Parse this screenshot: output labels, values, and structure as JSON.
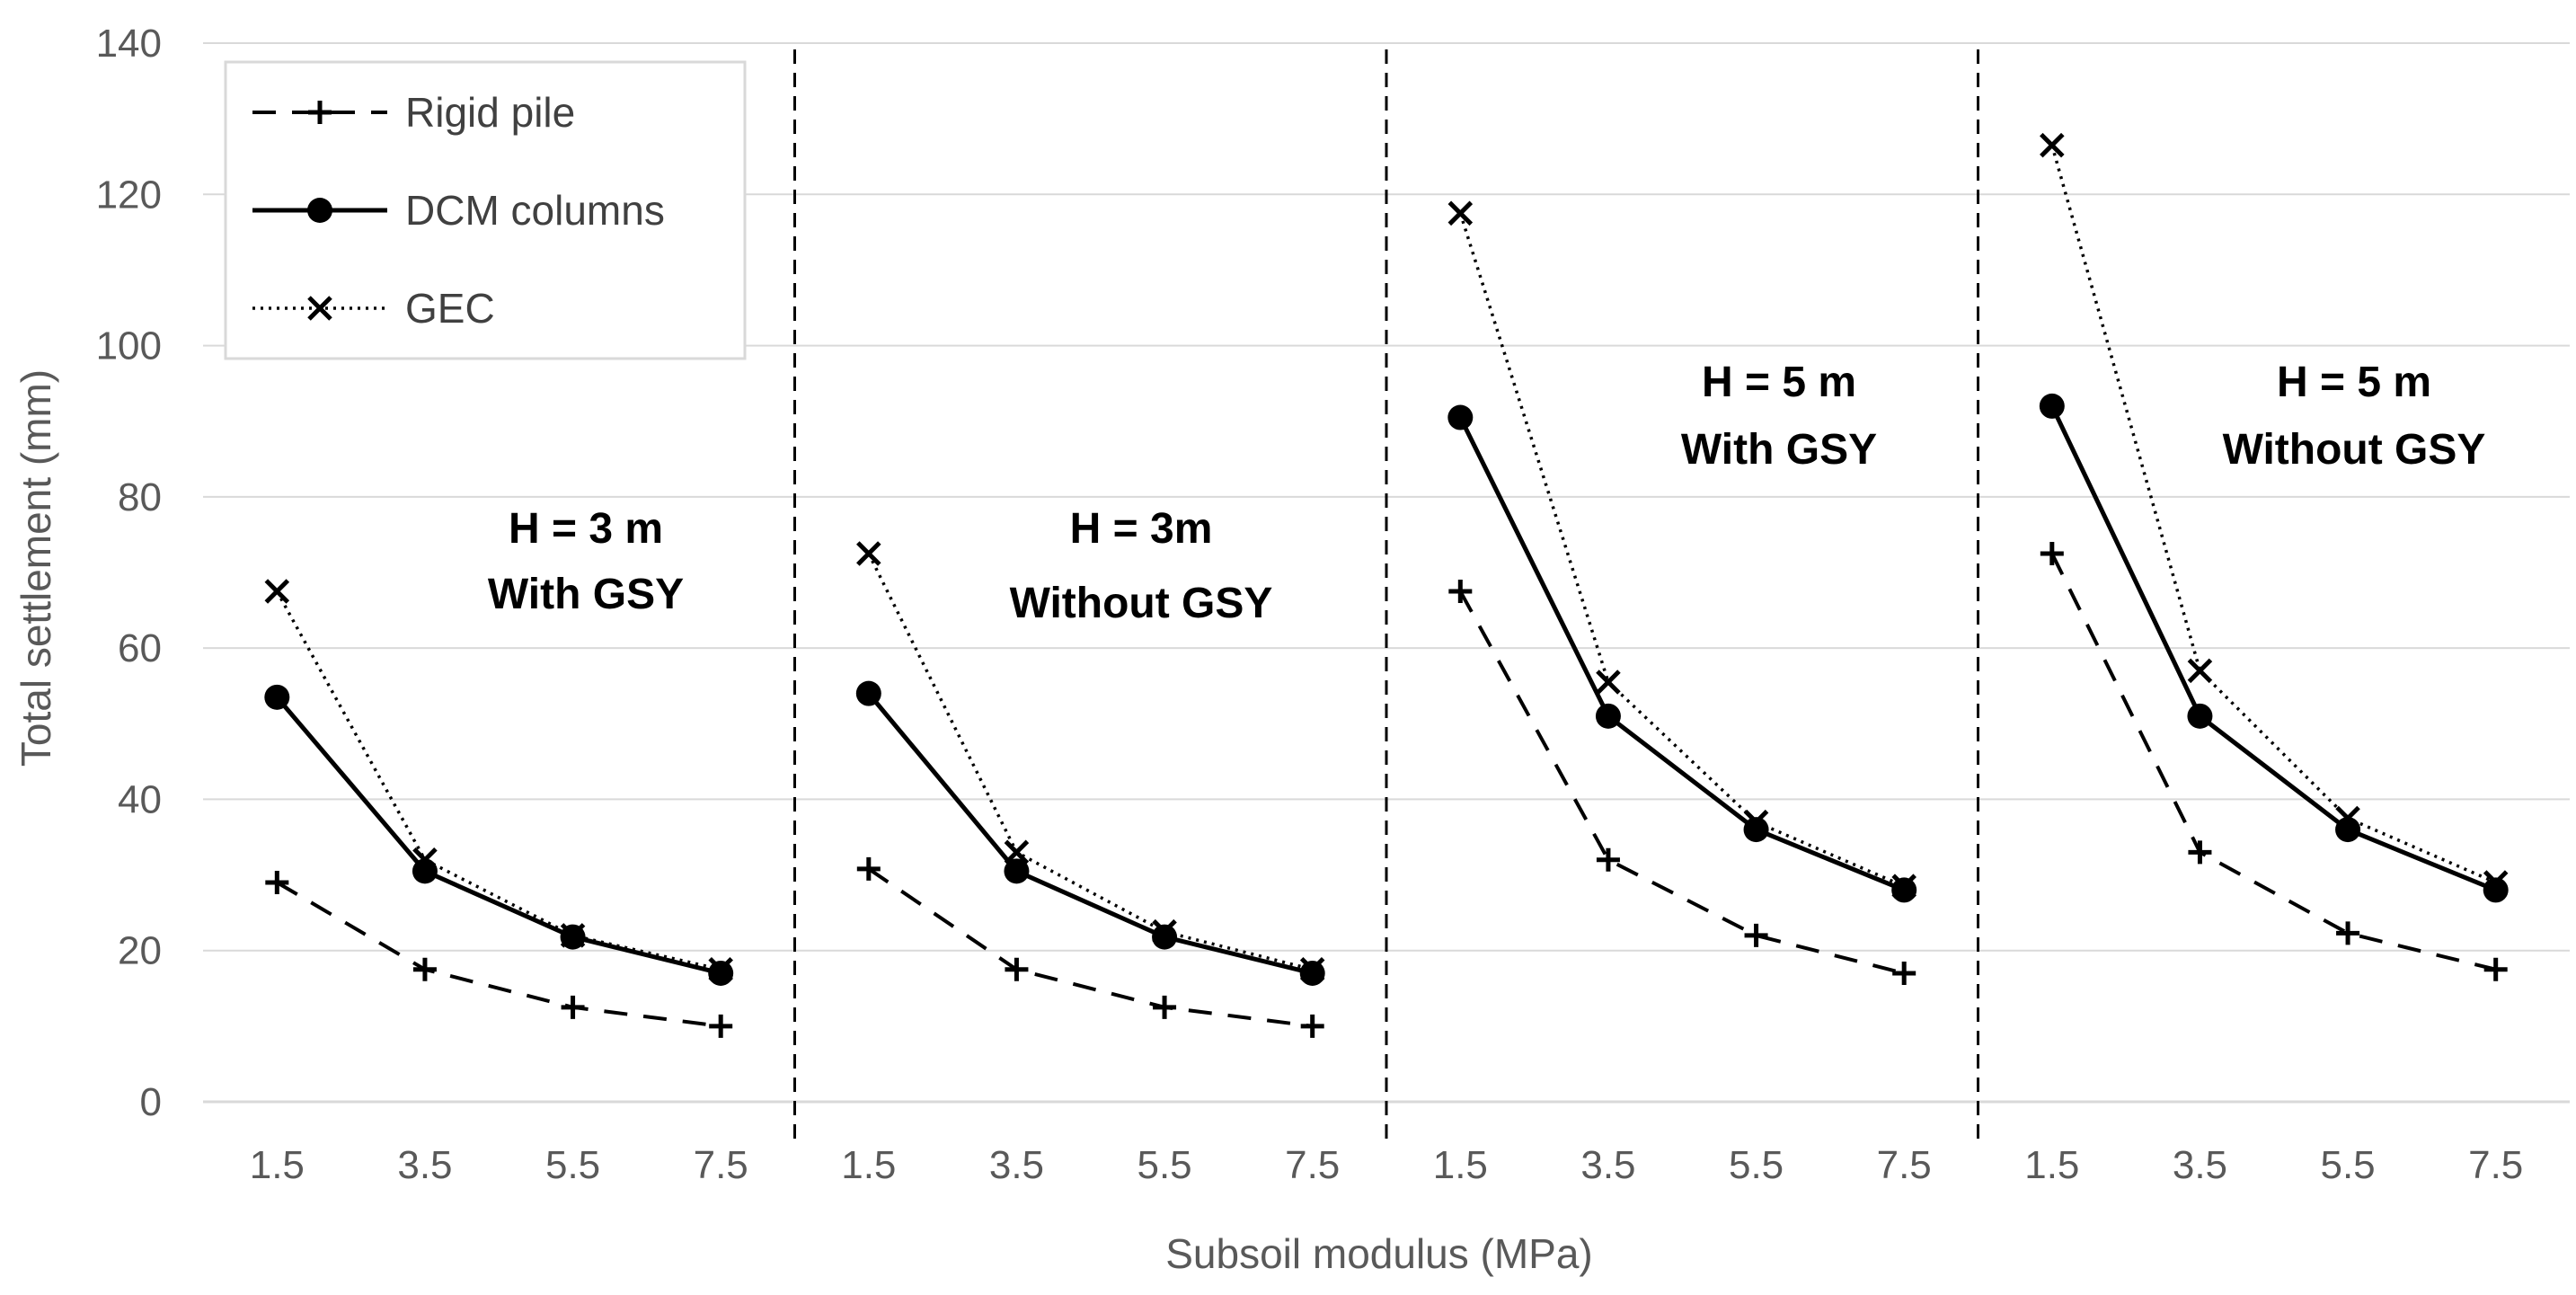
{
  "chart_data": {
    "type": "line",
    "title": "",
    "xlabel": "Subsoil modulus (MPa)",
    "ylabel": "Total settlement (mm)",
    "ylim": [
      0,
      140
    ],
    "yticks": [
      "0",
      "20",
      "40",
      "60",
      "80",
      "100",
      "120",
      "140"
    ],
    "grid": true,
    "legend_position": "top-left",
    "x_categories": [
      "1.5",
      "3.5",
      "5.5",
      "7.5"
    ],
    "panels": [
      {
        "label_line1": "H = 3 m",
        "label_line2": "With GSY",
        "series": [
          {
            "name": "Rigid pile",
            "values": [
              29,
              17.5,
              12.5,
              10
            ]
          },
          {
            "name": "DCM columns",
            "values": [
              53.5,
              30.5,
              21.8,
              17
            ]
          },
          {
            "name": "GEC",
            "values": [
              67.5,
              32,
              22,
              17.5
            ]
          }
        ]
      },
      {
        "label_line1": "H = 3m",
        "label_line2": "Without GSY",
        "series": [
          {
            "name": "Rigid pile",
            "values": [
              30.8,
              17.5,
              12.5,
              10
            ]
          },
          {
            "name": "DCM columns",
            "values": [
              54,
              30.5,
              21.8,
              17
            ]
          },
          {
            "name": "GEC",
            "values": [
              72.5,
              33,
              22.5,
              17.5
            ]
          }
        ]
      },
      {
        "label_line1": "H = 5 m",
        "label_line2": "With GSY",
        "series": [
          {
            "name": "Rigid pile",
            "values": [
              67.5,
              32,
              22,
              17
            ]
          },
          {
            "name": "DCM columns",
            "values": [
              90.5,
              51,
              36,
              28
            ]
          },
          {
            "name": "GEC",
            "values": [
              117.5,
              55.5,
              37,
              28.5
            ]
          }
        ]
      },
      {
        "label_line1": "H = 5 m",
        "label_line2": "Without GSY",
        "series": [
          {
            "name": "Rigid pile",
            "values": [
              72.5,
              33,
              22.3,
              17.5
            ]
          },
          {
            "name": "DCM columns",
            "values": [
              92,
              51,
              36,
              28
            ]
          },
          {
            "name": "GEC",
            "values": [
              126.5,
              57,
              37.5,
              29
            ]
          }
        ]
      }
    ],
    "legend": [
      "Rigid pile",
      "DCM columns",
      "GEC"
    ]
  }
}
